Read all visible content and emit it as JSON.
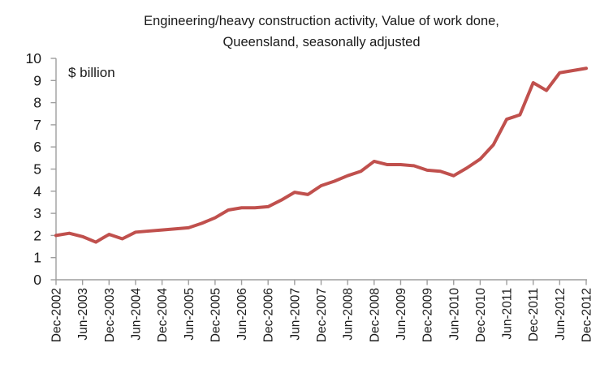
{
  "title": {
    "line1": "Engineering/heavy construction activity, Value of work done,",
    "line2": "Queensland, seasonally adjusted"
  },
  "unit_label": "$ billion",
  "colors": {
    "line": "#C0504D",
    "axis": "#9E9E9E",
    "text": "#1a1a1a"
  },
  "chart_data": {
    "type": "line",
    "title": "Engineering/heavy construction activity, Value of work done, Queensland, seasonally adjusted",
    "ylabel": "$ billion",
    "ylim": [
      0,
      10
    ],
    "y_ticks": [
      0,
      1,
      2,
      3,
      4,
      5,
      6,
      7,
      8,
      9,
      10
    ],
    "grid": false,
    "legend_position": "none",
    "frequency": "quarterly",
    "x_tick_step": 2,
    "x": [
      "Dec-2002",
      "Mar-2003",
      "Jun-2003",
      "Sep-2003",
      "Dec-2003",
      "Mar-2004",
      "Jun-2004",
      "Sep-2004",
      "Dec-2004",
      "Mar-2005",
      "Jun-2005",
      "Sep-2005",
      "Dec-2005",
      "Mar-2006",
      "Jun-2006",
      "Sep-2006",
      "Dec-2006",
      "Mar-2007",
      "Jun-2007",
      "Sep-2007",
      "Dec-2007",
      "Mar-2008",
      "Jun-2008",
      "Sep-2008",
      "Dec-2008",
      "Mar-2009",
      "Jun-2009",
      "Sep-2009",
      "Dec-2009",
      "Mar-2010",
      "Jun-2010",
      "Sep-2010",
      "Dec-2010",
      "Mar-2011",
      "Jun-2011",
      "Sep-2011",
      "Dec-2011",
      "Mar-2012",
      "Jun-2012",
      "Sep-2012",
      "Dec-2012"
    ],
    "series": [
      {
        "name": "Engineering/heavy construction value of work done, Queensland ($ billion)",
        "values": [
          2.0,
          2.1,
          1.95,
          1.7,
          2.05,
          1.85,
          2.15,
          2.2,
          2.25,
          2.3,
          2.35,
          2.55,
          2.8,
          3.15,
          3.25,
          3.25,
          3.3,
          3.6,
          3.95,
          3.85,
          4.25,
          4.45,
          4.7,
          4.9,
          5.35,
          5.2,
          5.2,
          5.15,
          4.95,
          4.9,
          4.7,
          5.05,
          5.45,
          6.1,
          7.25,
          7.45,
          8.9,
          8.55,
          9.35,
          9.45,
          9.55
        ]
      }
    ]
  }
}
